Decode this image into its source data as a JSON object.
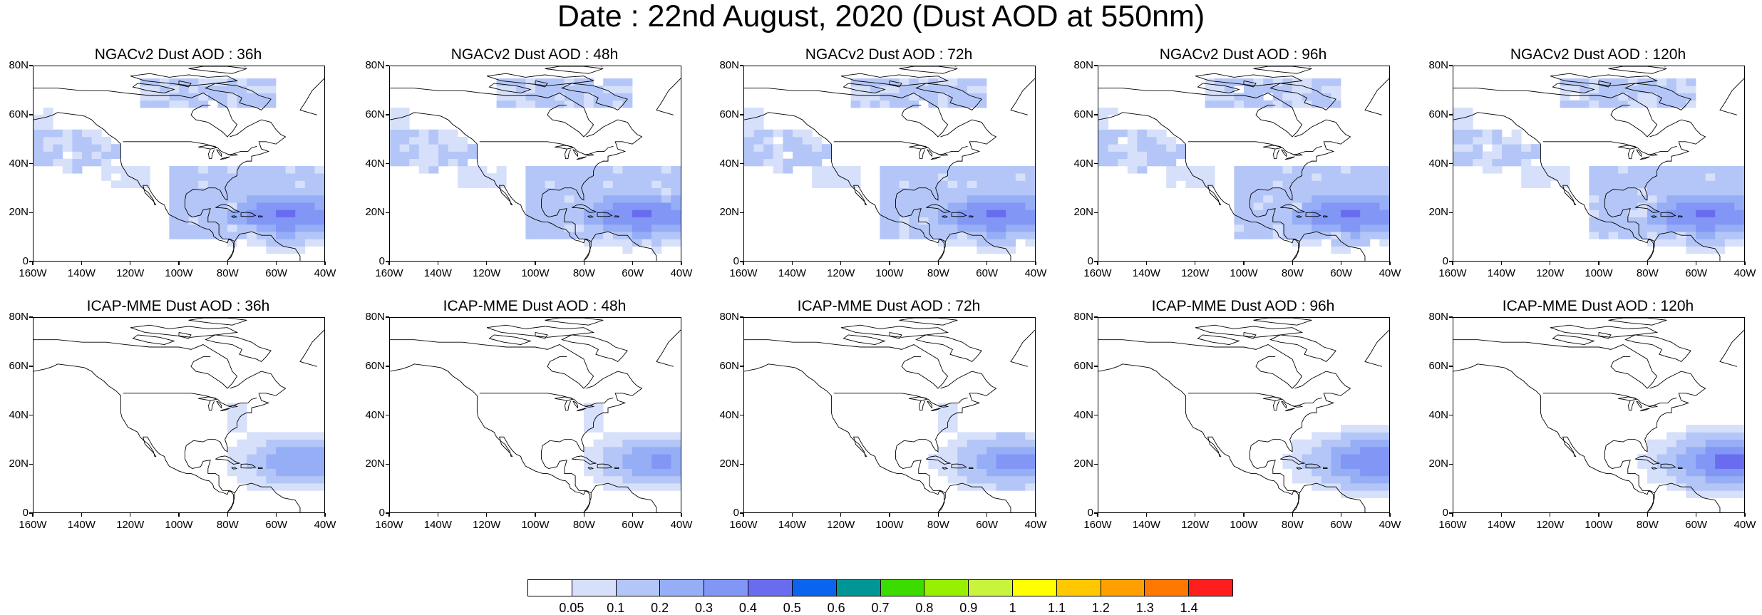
{
  "title": "Date : 22nd August, 2020 (Dust AOD at 550nm)",
  "axes": {
    "y_ticks": [
      "80N",
      "60N",
      "40N",
      "20N",
      "0"
    ],
    "x_ticks": [
      "160W",
      "140W",
      "120W",
      "100W",
      "80W",
      "60W",
      "40W"
    ]
  },
  "panels": [
    {
      "title": "NGACv2 Dust AOD : 36h",
      "model": "ngac",
      "lead": 36
    },
    {
      "title": "NGACv2 Dust AOD : 48h",
      "model": "ngac",
      "lead": 48
    },
    {
      "title": "NGACv2 Dust AOD : 72h",
      "model": "ngac",
      "lead": 72
    },
    {
      "title": "NGACv2 Dust AOD : 96h",
      "model": "ngac",
      "lead": 96
    },
    {
      "title": "NGACv2 Dust AOD : 120h",
      "model": "ngac",
      "lead": 120
    },
    {
      "title": "ICAP-MME Dust AOD : 36h",
      "model": "icap",
      "lead": 36
    },
    {
      "title": "ICAP-MME Dust AOD : 48h",
      "model": "icap",
      "lead": 48
    },
    {
      "title": "ICAP-MME Dust AOD : 72h",
      "model": "icap",
      "lead": 72
    },
    {
      "title": "ICAP-MME Dust AOD : 96h",
      "model": "icap",
      "lead": 96
    },
    {
      "title": "ICAP-MME Dust AOD : 120h",
      "model": "icap",
      "lead": 120
    }
  ],
  "colorbar": {
    "colors": [
      "#ffffff",
      "#d6e0fa",
      "#b4c6f7",
      "#96aef5",
      "#8296f5",
      "#6a6cf0",
      "#0a64f0",
      "#009696",
      "#3cdc00",
      "#96f000",
      "#c8f53c",
      "#ffff00",
      "#ffc800",
      "#ffa000",
      "#ff7800",
      "#ff1e1e"
    ],
    "labels": [
      "0.05",
      "0.1",
      "0.2",
      "0.3",
      "0.4",
      "0.5",
      "0.6",
      "0.7",
      "0.8",
      "0.9",
      "1",
      "1.1",
      "1.2",
      "1.3",
      "1.4"
    ]
  }
}
